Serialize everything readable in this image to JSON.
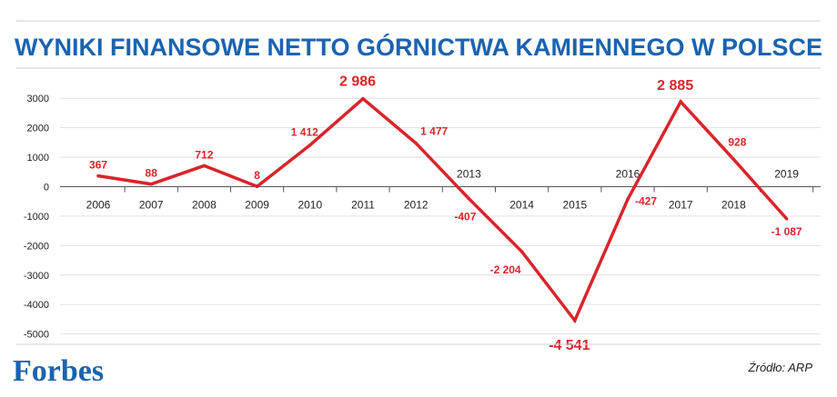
{
  "brand": {
    "logo_text": "Forbes",
    "accent": "#1a63b0"
  },
  "source": "Źródło: ARP",
  "chart_data": {
    "type": "line",
    "title": "WYNIKI FINANSOWE NETTO GÓRNICTWA KAMIENNEGO W POLSCE",
    "xlabel": "",
    "ylabel": "",
    "ylim": [
      -5000,
      3000
    ],
    "y_ticks": [
      "3000",
      "2000",
      "1000",
      "0",
      "-1000",
      "-2000",
      "-3000",
      "-4000",
      "-5000"
    ],
    "y_tick_values": [
      3000,
      2000,
      1000,
      0,
      -1000,
      -2000,
      -3000,
      -4000,
      -5000
    ],
    "categories": [
      "2006",
      "2007",
      "2008",
      "2009",
      "2010",
      "2011",
      "2012",
      "2013",
      "2014",
      "2015",
      "2016",
      "2017",
      "2018",
      "2019"
    ],
    "values": [
      367,
      88,
      712,
      8,
      1412,
      2986,
      1477,
      -407,
      -2204,
      -4541,
      -427,
      2885,
      928,
      -1087
    ],
    "data_labels": [
      "367",
      "88",
      "712",
      "8",
      "1 412",
      "2 986",
      "1 477",
      "-407",
      "-2 204",
      "-4 541",
      "-427",
      "2 885",
      "928",
      "-1 087"
    ],
    "line_color": "#d9242b",
    "grid": true
  }
}
